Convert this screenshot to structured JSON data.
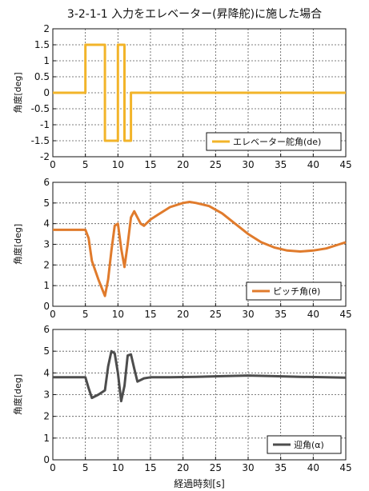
{
  "figure": {
    "title": "3-2-1-1 入力をエレベーター(昇降舵)に施した場合",
    "xlabel": "経過時刻[s]"
  },
  "chart_data": [
    {
      "type": "line",
      "ylabel": "角度[deg]",
      "xlim": [
        0,
        45
      ],
      "ylim": [
        -2,
        2
      ],
      "xticks": [
        "0",
        "5",
        "10",
        "15",
        "20",
        "25",
        "30",
        "35",
        "40",
        "45"
      ],
      "yticks": [
        "-2",
        "-1.5",
        "-1",
        "-0.5",
        "0",
        "0.5",
        "1",
        "1.5",
        "2"
      ],
      "grid": true,
      "legend_position": "bottom-right",
      "series": [
        {
          "name": "エレベーター舵角(de)",
          "color": "#f2b42a",
          "x": [
            0,
            5,
            5,
            8,
            8,
            10,
            10,
            11,
            11,
            12,
            12,
            45
          ],
          "y": [
            0,
            0,
            1.5,
            1.5,
            -1.5,
            -1.5,
            1.5,
            1.5,
            -1.5,
            -1.5,
            0,
            0
          ]
        }
      ]
    },
    {
      "type": "line",
      "ylabel": "角度[deg]",
      "xlim": [
        0,
        45
      ],
      "ylim": [
        0,
        6
      ],
      "xticks": [
        "0",
        "5",
        "10",
        "15",
        "20",
        "25",
        "30",
        "35",
        "40",
        "45"
      ],
      "yticks": [
        "0",
        "1",
        "2",
        "3",
        "4",
        "5",
        "6"
      ],
      "grid": true,
      "legend_position": "bottom-right",
      "series": [
        {
          "name": "ピッチ角(θ)",
          "color": "#e07b2c",
          "x": [
            0,
            2,
            4,
            5,
            5.5,
            6,
            7,
            7.5,
            8,
            8.5,
            9,
            9.5,
            10,
            10.5,
            11,
            11.5,
            12,
            12.5,
            13,
            13.5,
            14,
            15,
            16,
            18,
            20,
            21,
            22,
            24,
            26,
            28,
            30,
            32,
            34,
            36,
            38,
            40,
            42,
            44,
            45
          ],
          "y": [
            3.7,
            3.7,
            3.7,
            3.7,
            3.3,
            2.2,
            1.3,
            0.9,
            0.5,
            1.3,
            2.7,
            3.9,
            4.0,
            2.8,
            1.9,
            3.0,
            4.3,
            4.6,
            4.3,
            4.0,
            3.9,
            4.2,
            4.4,
            4.8,
            5.0,
            5.05,
            5.0,
            4.85,
            4.5,
            4.0,
            3.5,
            3.1,
            2.85,
            2.7,
            2.65,
            2.7,
            2.8,
            3.0,
            3.1
          ]
        }
      ]
    },
    {
      "type": "line",
      "ylabel": "角度[deg]",
      "xlim": [
        0,
        45
      ],
      "ylim": [
        0,
        6
      ],
      "xticks": [
        "0",
        "5",
        "10",
        "15",
        "20",
        "25",
        "30",
        "35",
        "40",
        "45"
      ],
      "yticks": [
        "0",
        "1",
        "2",
        "3",
        "4",
        "5",
        "6"
      ],
      "grid": true,
      "legend_position": "bottom-right",
      "series": [
        {
          "name": "迎角(α)",
          "color": "#4d4d4d",
          "x": [
            0,
            2,
            4,
            5,
            5.5,
            6,
            7,
            8,
            8.5,
            9,
            9.5,
            10,
            10.5,
            11,
            11.5,
            12,
            12.5,
            13,
            14,
            15,
            18,
            22,
            26,
            30,
            34,
            38,
            42,
            45
          ],
          "y": [
            3.8,
            3.8,
            3.8,
            3.8,
            3.3,
            2.85,
            3.0,
            3.2,
            4.3,
            5.0,
            4.9,
            4.0,
            2.7,
            3.4,
            4.8,
            4.85,
            4.2,
            3.6,
            3.75,
            3.8,
            3.8,
            3.82,
            3.85,
            3.88,
            3.85,
            3.82,
            3.8,
            3.78
          ]
        }
      ]
    }
  ]
}
